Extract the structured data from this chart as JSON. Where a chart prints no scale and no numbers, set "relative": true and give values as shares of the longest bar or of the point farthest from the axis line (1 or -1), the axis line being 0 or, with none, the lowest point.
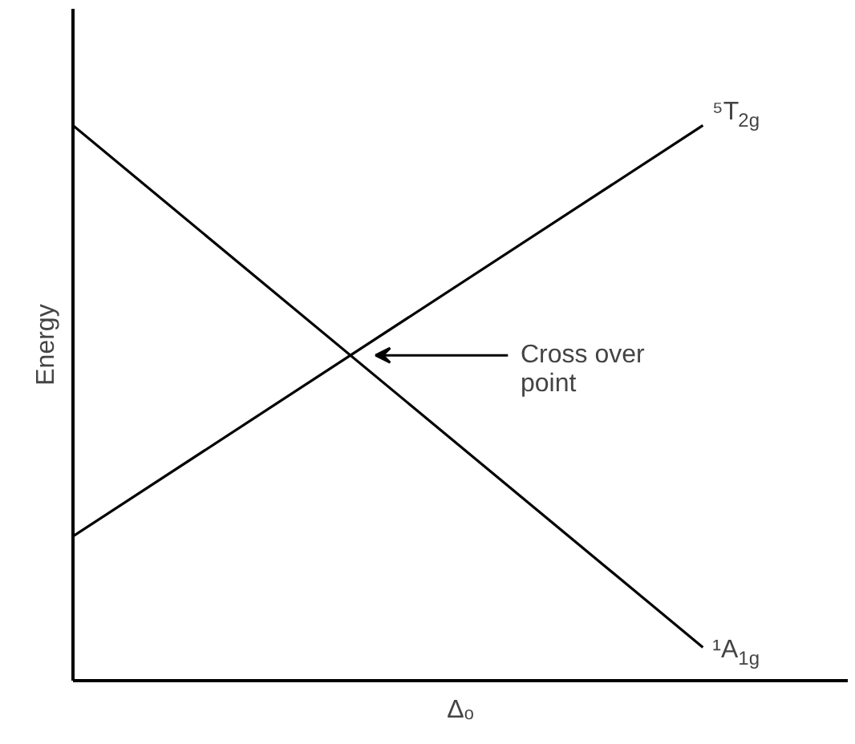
{
  "chart_data": {
    "type": "line",
    "relative": true,
    "categories": [
      null,
      null
    ],
    "xlabel": "Δₒ",
    "ylabel": "Energy",
    "series": [
      {
        "name": "¹A$_{1g}$",
        "color": "#000000",
        "values": [
          1,
          0.06
        ]
      },
      {
        "name": "⁵T$_{2g}$",
        "color": "#000000",
        "values": [
          0.26,
          1
        ]
      }
    ],
    "annotations": [
      "Cross over\npoint"
    ],
    "marker": "none",
    "line_style": "solid",
    "grid": false,
    "legend": false
  }
}
